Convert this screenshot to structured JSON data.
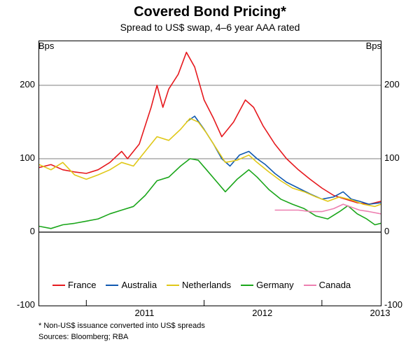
{
  "chart": {
    "type": "line",
    "title": "Covered Bond Pricing*",
    "subtitle": "Spread to US$ swap, 4–6 year AAA rated",
    "y_unit_left": "Bps",
    "y_unit_right": "Bps",
    "ylim": [
      -100,
      260
    ],
    "yticks": [
      -100,
      0,
      100,
      200
    ],
    "xlim": [
      2010.6,
      2013.5
    ],
    "xticks": [
      2011,
      2012,
      2013
    ],
    "grid_color": "#000000",
    "background_color": "#ffffff",
    "title_fontsize": 20,
    "subtitle_fontsize": 14,
    "tick_fontsize": 13,
    "line_width": 1.6,
    "series": [
      {
        "name": "France",
        "color": "#e6191e",
        "data": [
          [
            2010.6,
            88
          ],
          [
            2010.7,
            92
          ],
          [
            2010.8,
            85
          ],
          [
            2010.9,
            82
          ],
          [
            2011.0,
            80
          ],
          [
            2011.1,
            85
          ],
          [
            2011.2,
            95
          ],
          [
            2011.3,
            110
          ],
          [
            2011.35,
            100
          ],
          [
            2011.45,
            120
          ],
          [
            2011.55,
            170
          ],
          [
            2011.6,
            200
          ],
          [
            2011.65,
            170
          ],
          [
            2011.7,
            195
          ],
          [
            2011.78,
            215
          ],
          [
            2011.85,
            245
          ],
          [
            2011.92,
            225
          ],
          [
            2012.0,
            180
          ],
          [
            2012.08,
            155
          ],
          [
            2012.15,
            130
          ],
          [
            2012.25,
            150
          ],
          [
            2012.35,
            180
          ],
          [
            2012.42,
            170
          ],
          [
            2012.5,
            145
          ],
          [
            2012.6,
            120
          ],
          [
            2012.7,
            100
          ],
          [
            2012.8,
            85
          ],
          [
            2012.9,
            72
          ],
          [
            2013.0,
            60
          ],
          [
            2013.1,
            50
          ],
          [
            2013.2,
            45
          ],
          [
            2013.3,
            40
          ],
          [
            2013.4,
            38
          ],
          [
            2013.5,
            42
          ]
        ]
      },
      {
        "name": "Australia",
        "color": "#1059b0",
        "data": [
          [
            2011.85,
            150
          ],
          [
            2011.92,
            158
          ],
          [
            2012.0,
            140
          ],
          [
            2012.08,
            120
          ],
          [
            2012.15,
            100
          ],
          [
            2012.22,
            90
          ],
          [
            2012.3,
            105
          ],
          [
            2012.38,
            110
          ],
          [
            2012.45,
            100
          ],
          [
            2012.52,
            92
          ],
          [
            2012.6,
            80
          ],
          [
            2012.7,
            68
          ],
          [
            2012.8,
            60
          ],
          [
            2012.9,
            52
          ],
          [
            2013.0,
            45
          ],
          [
            2013.1,
            48
          ],
          [
            2013.18,
            55
          ],
          [
            2013.25,
            45
          ],
          [
            2013.32,
            42
          ],
          [
            2013.4,
            38
          ],
          [
            2013.5,
            40
          ]
        ]
      },
      {
        "name": "Netherlands",
        "color": "#e0c818",
        "data": [
          [
            2010.6,
            92
          ],
          [
            2010.7,
            85
          ],
          [
            2010.8,
            95
          ],
          [
            2010.9,
            78
          ],
          [
            2011.0,
            72
          ],
          [
            2011.1,
            78
          ],
          [
            2011.2,
            85
          ],
          [
            2011.3,
            95
          ],
          [
            2011.4,
            90
          ],
          [
            2011.5,
            110
          ],
          [
            2011.6,
            130
          ],
          [
            2011.7,
            125
          ],
          [
            2011.8,
            140
          ],
          [
            2011.88,
            155
          ],
          [
            2011.95,
            150
          ],
          [
            2012.02,
            135
          ],
          [
            2012.1,
            115
          ],
          [
            2012.18,
            95
          ],
          [
            2012.28,
            98
          ],
          [
            2012.38,
            105
          ],
          [
            2012.45,
            95
          ],
          [
            2012.55,
            82
          ],
          [
            2012.65,
            70
          ],
          [
            2012.75,
            60
          ],
          [
            2012.85,
            55
          ],
          [
            2012.95,
            48
          ],
          [
            2013.05,
            42
          ],
          [
            2013.15,
            48
          ],
          [
            2013.25,
            44
          ],
          [
            2013.35,
            38
          ],
          [
            2013.45,
            35
          ],
          [
            2013.5,
            38
          ]
        ]
      },
      {
        "name": "Germany",
        "color": "#1aa61a",
        "data": [
          [
            2010.6,
            8
          ],
          [
            2010.7,
            5
          ],
          [
            2010.8,
            10
          ],
          [
            2010.9,
            12
          ],
          [
            2011.0,
            15
          ],
          [
            2011.1,
            18
          ],
          [
            2011.2,
            25
          ],
          [
            2011.3,
            30
          ],
          [
            2011.4,
            35
          ],
          [
            2011.5,
            50
          ],
          [
            2011.6,
            70
          ],
          [
            2011.7,
            75
          ],
          [
            2011.8,
            90
          ],
          [
            2011.88,
            100
          ],
          [
            2011.95,
            98
          ],
          [
            2012.02,
            85
          ],
          [
            2012.1,
            70
          ],
          [
            2012.18,
            55
          ],
          [
            2012.28,
            72
          ],
          [
            2012.38,
            85
          ],
          [
            2012.45,
            75
          ],
          [
            2012.55,
            58
          ],
          [
            2012.65,
            45
          ],
          [
            2012.75,
            38
          ],
          [
            2012.85,
            32
          ],
          [
            2012.95,
            22
          ],
          [
            2013.05,
            18
          ],
          [
            2013.15,
            28
          ],
          [
            2013.22,
            36
          ],
          [
            2013.3,
            25
          ],
          [
            2013.38,
            18
          ],
          [
            2013.45,
            10
          ],
          [
            2013.5,
            12
          ]
        ]
      },
      {
        "name": "Canada",
        "color": "#ed7fb0",
        "data": [
          [
            2012.6,
            30
          ],
          [
            2012.7,
            30
          ],
          [
            2012.8,
            30
          ],
          [
            2012.9,
            28
          ],
          [
            2013.0,
            28
          ],
          [
            2013.1,
            32
          ],
          [
            2013.18,
            38
          ],
          [
            2013.25,
            34
          ],
          [
            2013.32,
            30
          ],
          [
            2013.4,
            28
          ],
          [
            2013.5,
            25
          ]
        ]
      }
    ],
    "legend": {
      "items": [
        "France",
        "Australia",
        "Netherlands",
        "Germany",
        "Canada"
      ]
    },
    "footnote": "*    Non-US$ issuance converted into US$ spreads",
    "sources": "Sources: Bloomberg; RBA"
  }
}
